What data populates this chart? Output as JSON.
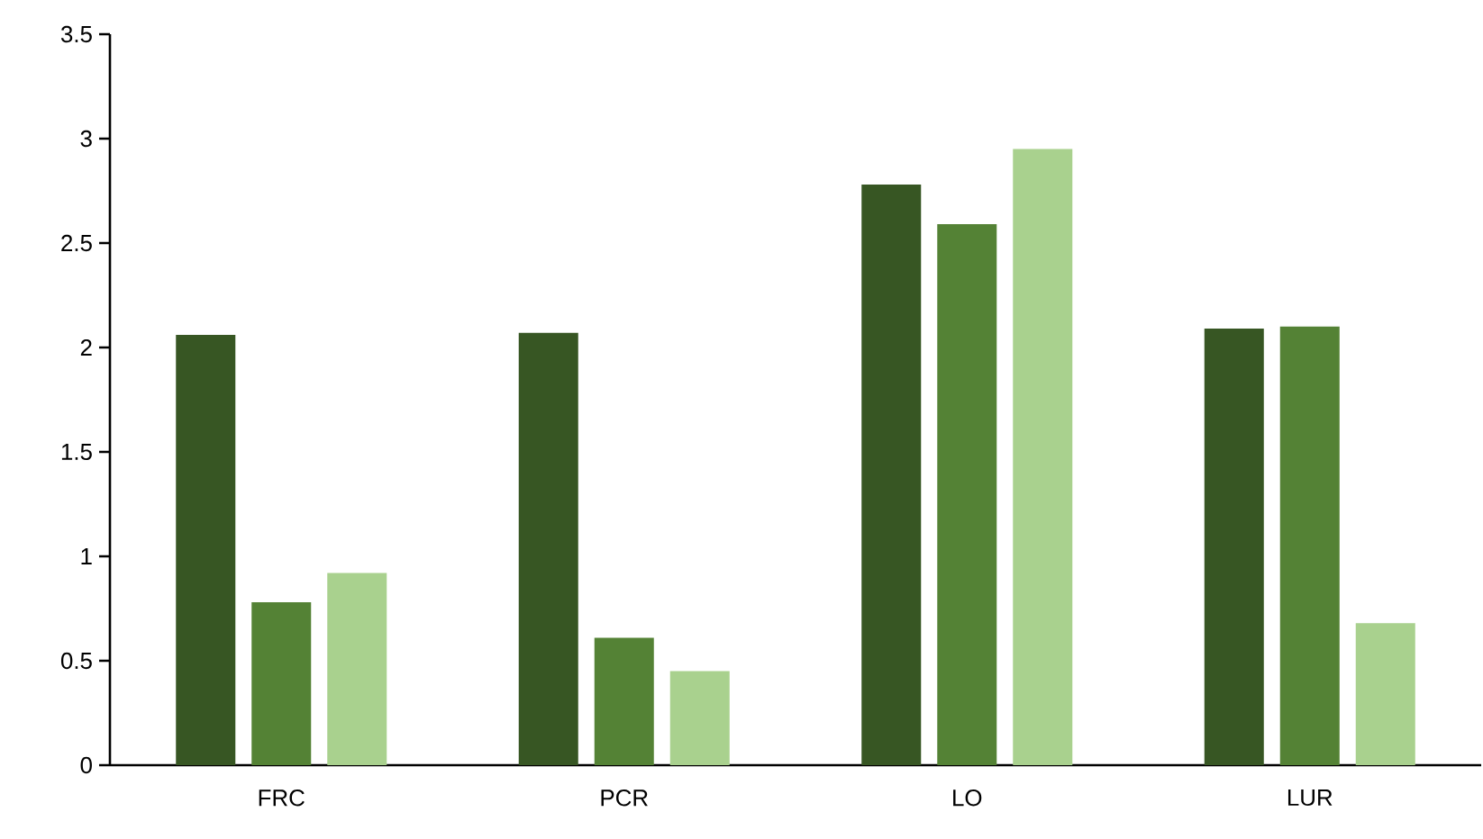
{
  "chart_data": {
    "type": "bar",
    "categories": [
      "FRC",
      "PCR",
      "LO",
      "LUR"
    ],
    "series": [
      {
        "color": "#375623",
        "values": [
          2.06,
          2.07,
          2.78,
          2.09
        ]
      },
      {
        "color": "#548235",
        "values": [
          0.78,
          0.61,
          2.59,
          2.1
        ]
      },
      {
        "color": "#a9d18e",
        "values": [
          0.92,
          0.45,
          2.95,
          0.68
        ]
      }
    ],
    "ylim": [
      0,
      3.5
    ],
    "yticks": [
      0,
      0.5,
      1,
      1.5,
      2,
      2.5,
      3,
      3.5
    ]
  }
}
